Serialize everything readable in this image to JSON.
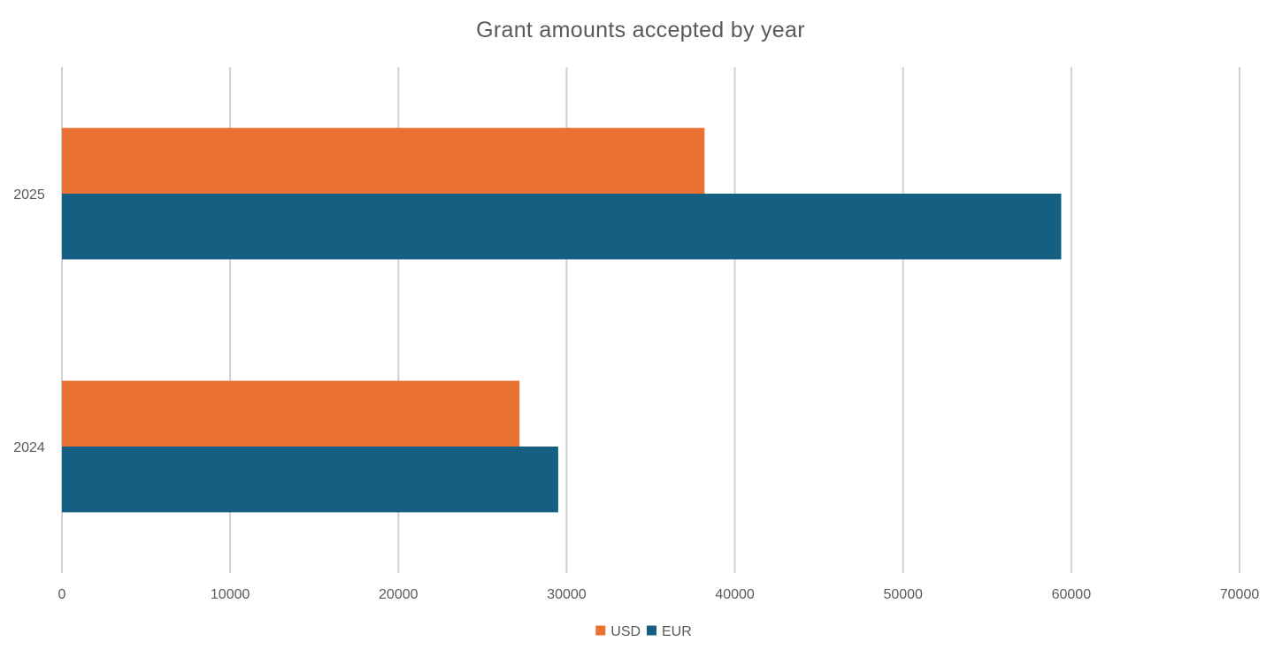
{
  "chart_data": {
    "type": "bar",
    "orientation": "horizontal",
    "title": "Grant amounts accepted by year",
    "xlabel": "",
    "ylabel": "",
    "categories": [
      "2024",
      "2025"
    ],
    "series": [
      {
        "name": "USD",
        "color": "#E97132",
        "values": [
          27200,
          38200
        ]
      },
      {
        "name": "EUR",
        "color": "#156082",
        "values": [
          29500,
          59400
        ]
      }
    ],
    "xlim": [
      0,
      70000
    ],
    "xticks": [
      0,
      10000,
      20000,
      30000,
      40000,
      50000,
      60000,
      70000
    ],
    "grid": true,
    "legend_position": "bottom"
  }
}
